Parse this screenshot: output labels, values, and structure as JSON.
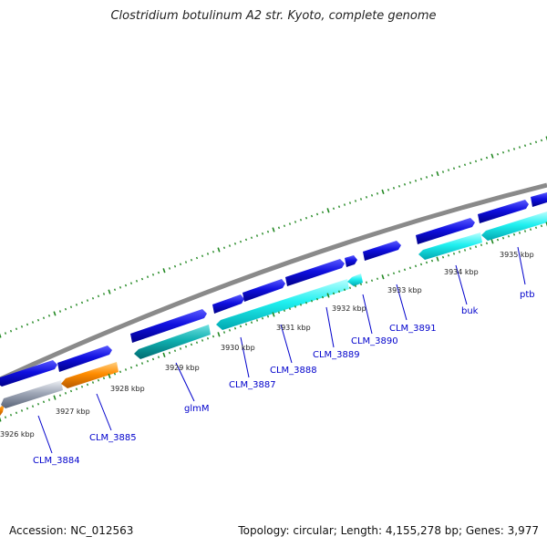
{
  "title": "Clostridium botulinum A2 str. Kyoto, complete genome",
  "footer": {
    "accession": "Accession: NC_012563",
    "topology": "Topology: circular; Length: 4,155,278 bp; Genes: 3,977"
  },
  "colors": {
    "backbone": "#888888",
    "forward_gene": "#1010e0",
    "reverse_gene_cyan": "#20f0f0",
    "reverse_gene_teal": "#10b0b0",
    "reverse_gene_orange": "#ff8c00",
    "reverse_gene_gray": "#a0a8b8",
    "tick": "#228822",
    "gene_label": "#0000cc"
  },
  "kbp_labels": [
    "3926 kbp",
    "3927 kbp",
    "3928 kbp",
    "3929 kbp",
    "3930 kbp",
    "3931 kbp",
    "3932 kbp",
    "3933 kbp",
    "3934 kbp",
    "3935 kbp"
  ],
  "gene_labels": [
    "CLM_3884",
    "CLM_3885",
    "glmM",
    "CLM_3887",
    "CLM_3888",
    "CLM_3889",
    "CLM_3890",
    "CLM_3891",
    "buk",
    "ptb"
  ]
}
